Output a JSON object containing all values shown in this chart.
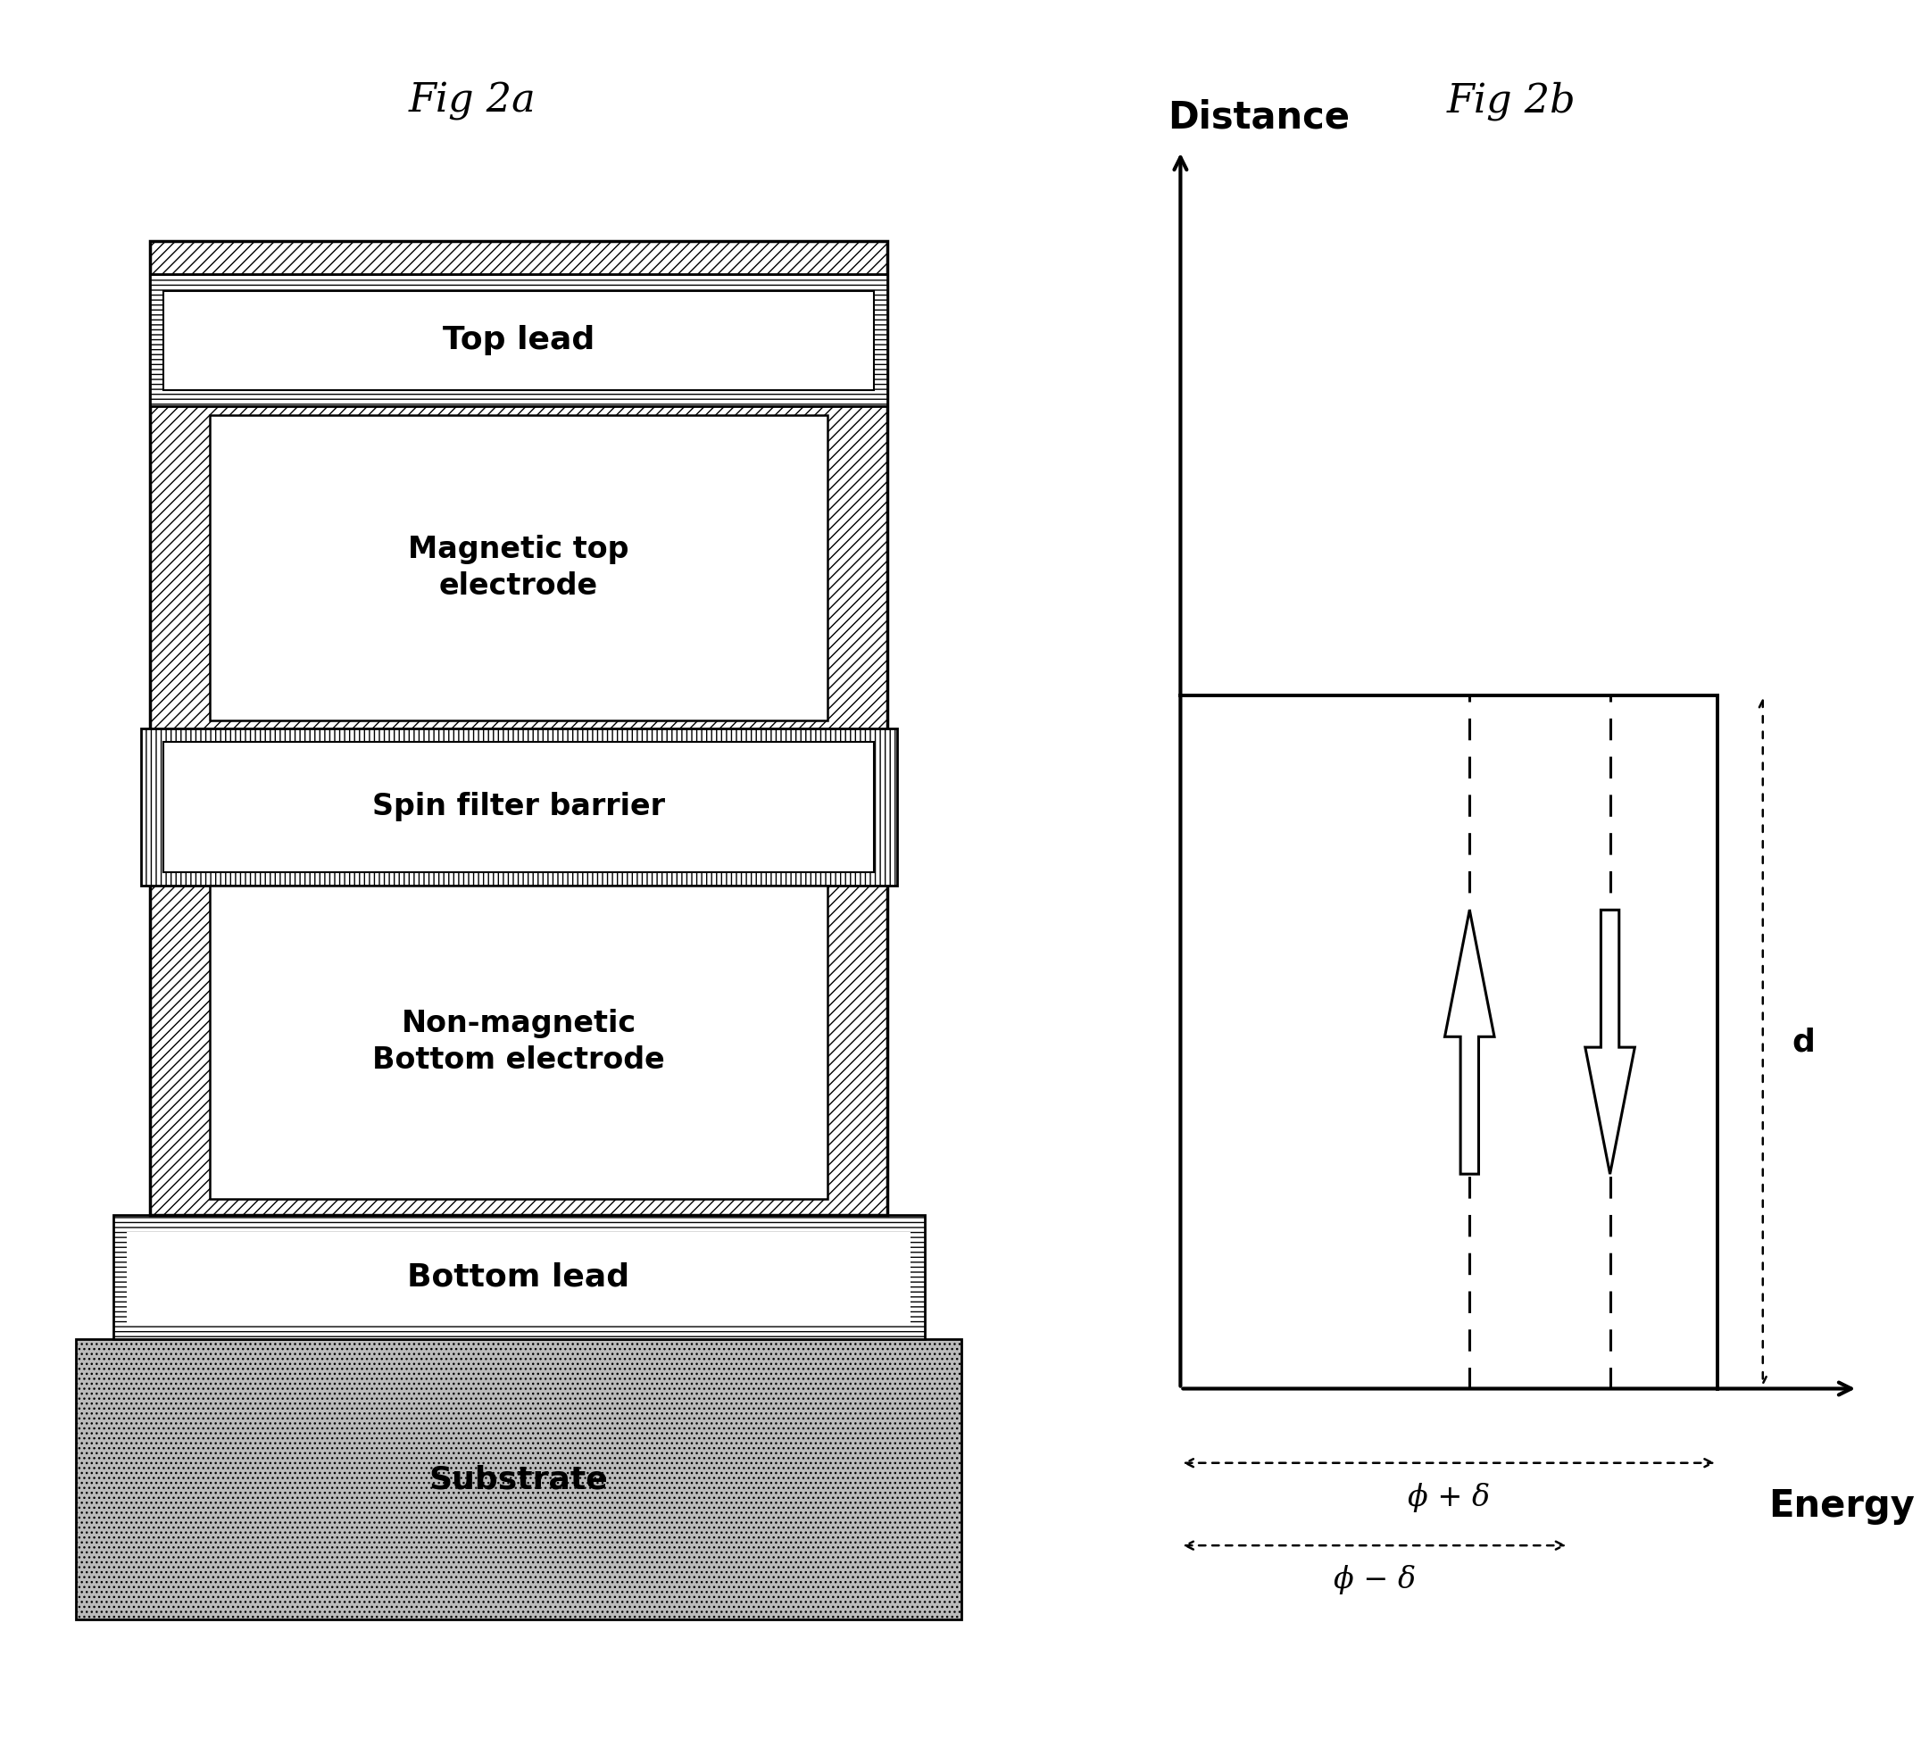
{
  "fig2a_title": "Fig 2a",
  "fig2b_title": "Fig 2b",
  "background_color": "#ffffff",
  "diagram_xlabel": "Energy",
  "diagram_ylabel": "Distance",
  "phi_plus_delta": "ϕ + δ",
  "phi_minus_delta": "ϕ − δ",
  "d_label": "d"
}
